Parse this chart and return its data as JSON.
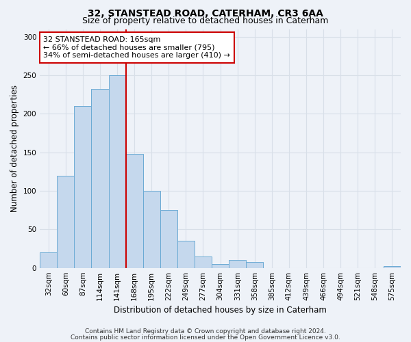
{
  "title": "32, STANSTEAD ROAD, CATERHAM, CR3 6AA",
  "subtitle": "Size of property relative to detached houses in Caterham",
  "xlabel": "Distribution of detached houses by size in Caterham",
  "ylabel": "Number of detached properties",
  "bar_labels": [
    "32sqm",
    "60sqm",
    "87sqm",
    "114sqm",
    "141sqm",
    "168sqm",
    "195sqm",
    "222sqm",
    "249sqm",
    "277sqm",
    "304sqm",
    "331sqm",
    "358sqm",
    "385sqm",
    "412sqm",
    "439sqm",
    "466sqm",
    "494sqm",
    "521sqm",
    "548sqm",
    "575sqm"
  ],
  "bar_values": [
    20,
    120,
    210,
    232,
    250,
    148,
    100,
    75,
    35,
    15,
    5,
    10,
    8,
    0,
    0,
    0,
    0,
    0,
    0,
    0,
    2
  ],
  "bar_color": "#c5d8ed",
  "bar_edge_color": "#6aaad4",
  "property_line_color": "#cc0000",
  "annotation_text": "32 STANSTEAD ROAD: 165sqm\n← 66% of detached houses are smaller (795)\n34% of semi-detached houses are larger (410) →",
  "annotation_box_color": "#ffffff",
  "annotation_box_edge": "#cc0000",
  "ylim": [
    0,
    310
  ],
  "footer1": "Contains HM Land Registry data © Crown copyright and database right 2024.",
  "footer2": "Contains public sector information licensed under the Open Government Licence v3.0.",
  "background_color": "#eef2f8",
  "grid_color": "#d8dfe8",
  "title_fontsize": 10,
  "subtitle_fontsize": 9,
  "axis_label_fontsize": 8.5,
  "tick_fontsize": 7.5,
  "annotation_fontsize": 8,
  "footer_fontsize": 6.5
}
